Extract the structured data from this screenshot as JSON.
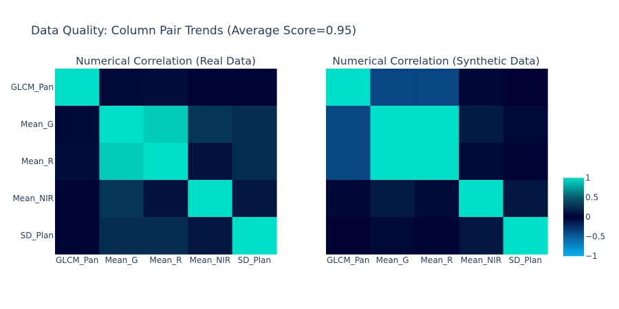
{
  "figure": {
    "title": "Data Quality: Column Pair Trends (Average Score=0.95)"
  },
  "colorscale": {
    "stops": [
      [
        0.0,
        "#00b4f0"
      ],
      [
        0.25,
        "#0b5e9c"
      ],
      [
        0.5,
        "#000033"
      ],
      [
        0.75,
        "#0a5a6b"
      ],
      [
        1.0,
        "#00e0c8"
      ]
    ],
    "zmin": -1,
    "zmax": 1
  },
  "colorbar": {
    "tick_values": [
      1,
      0.5,
      0,
      -0.5,
      -1
    ],
    "tick_labels": [
      "1",
      "0.5",
      "0",
      "−0.5",
      "−1"
    ]
  },
  "chart_data": [
    {
      "type": "heatmap",
      "title": "Numerical Correlation (Real Data)",
      "x": [
        "GLCM_Pan",
        "Mean_G",
        "Mean_R",
        "Mean_NIR",
        "SD_Plan"
      ],
      "y": [
        "GLCM_Pan",
        "Mean_G",
        "Mean_R",
        "Mean_NIR",
        "SD_Plan"
      ],
      "z": [
        [
          1.0,
          0.05,
          0.07,
          0.03,
          0.02
        ],
        [
          0.05,
          1.0,
          0.92,
          0.3,
          0.25
        ],
        [
          0.07,
          0.92,
          1.0,
          0.1,
          0.25
        ],
        [
          0.03,
          0.3,
          0.1,
          1.0,
          0.12
        ],
        [
          0.02,
          0.25,
          0.25,
          0.12,
          1.0
        ]
      ],
      "zmin": -1,
      "zmax": 1
    },
    {
      "type": "heatmap",
      "title": "Numerical Correlation (Synthetic Data)",
      "x": [
        "GLCM_Pan",
        "Mean_G",
        "Mean_R",
        "Mean_NIR",
        "SD_Plan"
      ],
      "y": [
        "GLCM_Pan",
        "Mean_G",
        "Mean_R",
        "Mean_NIR",
        "SD_Plan"
      ],
      "z": [
        [
          1.0,
          -0.38,
          -0.38,
          0.04,
          0.0
        ],
        [
          -0.38,
          1.0,
          1.0,
          0.15,
          0.05
        ],
        [
          -0.38,
          1.0,
          1.0,
          0.06,
          0.03
        ],
        [
          0.04,
          0.15,
          0.06,
          1.0,
          0.12
        ],
        [
          0.0,
          0.05,
          0.03,
          0.12,
          1.0
        ]
      ],
      "zmin": -1,
      "zmax": 1
    }
  ]
}
